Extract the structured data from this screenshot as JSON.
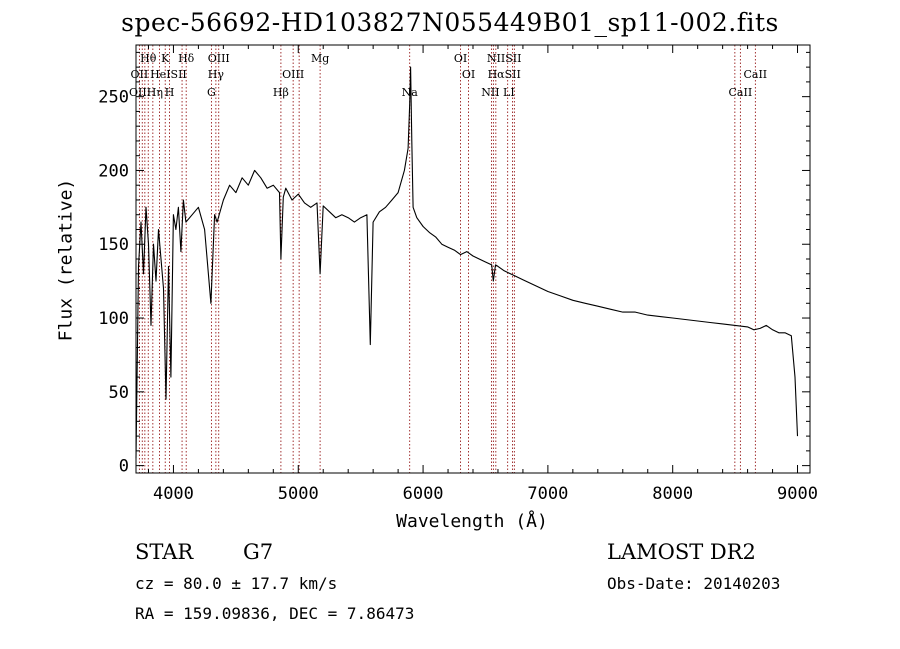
{
  "chart_data": {
    "type": "line",
    "title": "spec-56692-HD103827N055449B01_sp11-002.fits",
    "xlabel": "Wavelength (Å)",
    "ylabel": "Flux (relative)",
    "xlim": [
      3700,
      9100
    ],
    "ylim": [
      -5,
      285
    ],
    "xticks": [
      4000,
      5000,
      6000,
      7000,
      8000,
      9000
    ],
    "yticks": [
      0,
      50,
      100,
      150,
      200,
      250
    ],
    "series": [
      {
        "name": "flux",
        "x": [
          3700,
          3720,
          3740,
          3760,
          3780,
          3800,
          3820,
          3840,
          3860,
          3880,
          3900,
          3920,
          3940,
          3960,
          3980,
          4000,
          4020,
          4040,
          4060,
          4080,
          4100,
          4150,
          4200,
          4250,
          4300,
          4330,
          4350,
          4400,
          4450,
          4500,
          4550,
          4600,
          4650,
          4700,
          4750,
          4800,
          4850,
          4861,
          4880,
          4900,
          4950,
          5000,
          5050,
          5100,
          5150,
          5175,
          5200,
          5250,
          5300,
          5350,
          5400,
          5450,
          5500,
          5550,
          5577,
          5600,
          5650,
          5700,
          5750,
          5800,
          5850,
          5880,
          5893,
          5900,
          5910,
          5920,
          5950,
          6000,
          6050,
          6100,
          6150,
          6200,
          6250,
          6300,
          6350,
          6400,
          6450,
          6500,
          6550,
          6563,
          6580,
          6600,
          6650,
          6700,
          6750,
          6800,
          6900,
          7000,
          7100,
          7200,
          7300,
          7400,
          7500,
          7600,
          7700,
          7800,
          7900,
          8000,
          8100,
          8200,
          8300,
          8400,
          8500,
          8600,
          8650,
          8700,
          8750,
          8800,
          8850,
          8900,
          8950,
          8980,
          9000
        ],
        "y": [
          5,
          135,
          165,
          130,
          175,
          150,
          95,
          150,
          125,
          160,
          140,
          120,
          45,
          135,
          60,
          170,
          160,
          175,
          145,
          180,
          165,
          170,
          175,
          160,
          110,
          170,
          165,
          180,
          190,
          185,
          195,
          190,
          200,
          195,
          188,
          190,
          185,
          140,
          182,
          188,
          180,
          184,
          178,
          175,
          178,
          130,
          176,
          172,
          168,
          170,
          168,
          165,
          168,
          170,
          82,
          165,
          172,
          175,
          180,
          185,
          200,
          215,
          245,
          270,
          220,
          175,
          168,
          162,
          158,
          155,
          150,
          148,
          146,
          143,
          145,
          142,
          140,
          138,
          136,
          125,
          136,
          135,
          132,
          130,
          128,
          126,
          122,
          118,
          115,
          112,
          110,
          108,
          106,
          104,
          104,
          102,
          101,
          100,
          99,
          98,
          97,
          96,
          95,
          94,
          92,
          93,
          95,
          92,
          90,
          90,
          88,
          60,
          20
        ]
      }
    ],
    "line_labels": [
      {
        "lines": [
          {
            "t": "Hθ",
            "c": 3798
          },
          {
            "t": "K",
            "c": 3934
          },
          {
            "t": "Hδ",
            "c": 4102
          },
          {
            "t": "OIII",
            "c": 4363
          },
          {
            "t": "Mg",
            "c": 5175
          },
          {
            "t": "OI",
            "c": 6300
          },
          {
            "t": "NIISII",
            "c": 6650
          }
        ]
      },
      {
        "lines": [
          {
            "t": "OII",
            "c": 3727
          },
          {
            "t": "HeISII",
            "c": 3960
          },
          {
            "t": "Hγ",
            "c": 4340
          },
          {
            "t": "OIII",
            "c": 4959
          },
          {
            "t": "OI",
            "c": 6364
          },
          {
            "t": "HαSII",
            "c": 6650
          },
          {
            "t": "CaII",
            "c": 8662
          }
        ]
      },
      {
        "lines": [
          {
            "t": "OIIHη",
            "c": 3780
          },
          {
            "t": "H",
            "c": 3969
          },
          {
            "t": "G",
            "c": 4304
          },
          {
            "t": "Hβ",
            "c": 4861
          },
          {
            "t": "Na",
            "c": 5893
          },
          {
            "t": "NII LI",
            "c": 6600
          },
          {
            "t": "CaII",
            "c": 8542
          }
        ]
      }
    ],
    "marker_lines": [
      3727,
      3750,
      3771,
      3798,
      3835,
      3889,
      3934,
      3969,
      4069,
      4102,
      4304,
      4340,
      4363,
      4861,
      4959,
      5007,
      5175,
      5893,
      6300,
      6364,
      6548,
      6563,
      6583,
      6678,
      6717,
      6731,
      8498,
      8542,
      8662
    ]
  },
  "info": {
    "object_class": "STAR",
    "subclass": "G7",
    "survey": "LAMOST DR2",
    "cz": "cz = 80.0 ± 17.7 km/s",
    "obs_date": "Obs-Date: 20140203",
    "coords": "RA = 159.09836, DEC =   7.86473"
  },
  "colors": {
    "line": "#000000",
    "marker": "#8b0000",
    "background": "#ffffff"
  }
}
